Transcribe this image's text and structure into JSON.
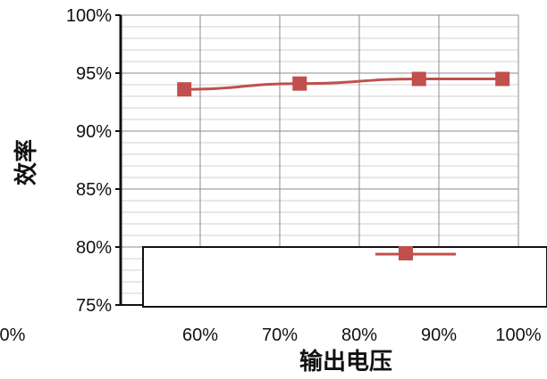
{
  "chart_data": {
    "type": "line",
    "xlabel": "输出电压",
    "ylabel": "效率",
    "xlim": [
      50,
      100
    ],
    "ylim": [
      75,
      100
    ],
    "x_ticks": [
      "60%",
      "70%",
      "80%",
      "90%",
      "100%"
    ],
    "x_ticks_partial": "0%",
    "y_ticks": [
      "100%",
      "95%",
      "90%",
      "85%",
      "80%",
      "75%"
    ],
    "grid": true,
    "legend_placement": "bottom-right",
    "series": [
      {
        "name": "",
        "color": "#c0504d",
        "marker": "square",
        "x": [
          58,
          72.5,
          87.5,
          98
        ],
        "y": [
          93.6,
          94.1,
          94.5,
          94.5
        ]
      }
    ]
  }
}
